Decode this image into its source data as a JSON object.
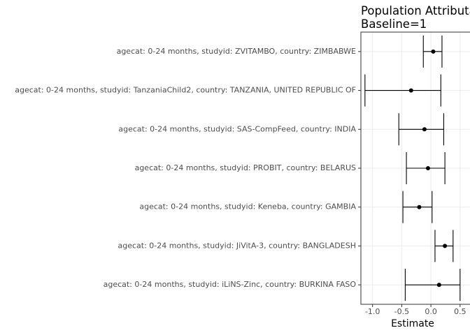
{
  "chart_data": {
    "type": "errorbar",
    "title": "Population Attributa",
    "subtitle": "Baseline=1",
    "x_label": "Estimate",
    "categories": [
      "agecat: 0-24 months, studyid: ZVITAMBO, country: ZIMBABWE",
      "agecat: 0-24 months, studyid: TanzaniaChild2, country: TANZANIA, UNITED REPUBLIC OF",
      "agecat: 0-24 months, studyid: SAS-CompFeed, country: INDIA",
      "agecat: 0-24 months, studyid: PROBIT, country: BELARUS",
      "agecat: 0-24 months, studyid: Keneba, country: GAMBIA",
      "agecat: 0-24 months, studyid: JiVitA-3, country: BANGLADESH",
      "agecat: 0-24 months, studyid: iLiNS-Zinc, country: BURKINA FASO"
    ],
    "values": [
      0.04,
      -0.34,
      -0.11,
      -0.05,
      -0.2,
      0.24,
      0.14
    ],
    "lower": [
      -0.13,
      -1.13,
      -0.55,
      -0.42,
      -0.48,
      0.07,
      -0.44
    ],
    "upper": [
      0.19,
      0.17,
      0.22,
      0.24,
      0.02,
      0.38,
      0.5
    ],
    "color": "#000000",
    "xlim": [
      -1.2,
      0.67
    ],
    "xticks": [
      {
        "value": -1.0,
        "label": "-1.0"
      },
      {
        "value": -0.5,
        "label": "-0.5"
      },
      {
        "value": 0.0,
        "label": "0.0"
      },
      {
        "value": 0.5,
        "label": "0.5"
      }
    ],
    "grid": true
  }
}
